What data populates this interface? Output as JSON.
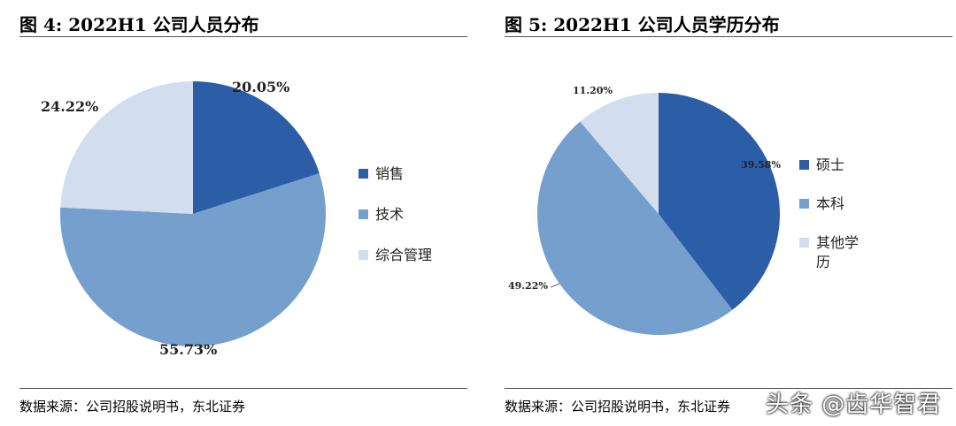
{
  "chart_data": [
    {
      "type": "pie",
      "figure_label": "图 4:",
      "title": "2022H1 公司人员分布",
      "source": "数据来源：公司招股说明书，东北证券",
      "categories": [
        "销售",
        "技术",
        "综合管理"
      ],
      "values": [
        20.05,
        55.73,
        24.22
      ],
      "data_labels": [
        "20.05%",
        "55.73%",
        "24.22%"
      ],
      "colors": [
        "#2b5ea7",
        "#75a0cd",
        "#d2deee"
      ],
      "legend_position": "right"
    },
    {
      "type": "pie",
      "figure_label": "图 5:",
      "title": "2022H1 公司人员学历分布",
      "source": "数据来源：公司招股说明书，东北证券",
      "categories": [
        "硕士",
        "本科",
        "其他学历"
      ],
      "values": [
        39.58,
        49.22,
        11.2
      ],
      "data_labels": [
        "39.58%",
        "49.22%",
        "11.20%"
      ],
      "colors": [
        "#2b5ea7",
        "#75a0cd",
        "#d2deee"
      ],
      "legend_position": "right"
    }
  ],
  "watermark": "头条 @齿华智君"
}
